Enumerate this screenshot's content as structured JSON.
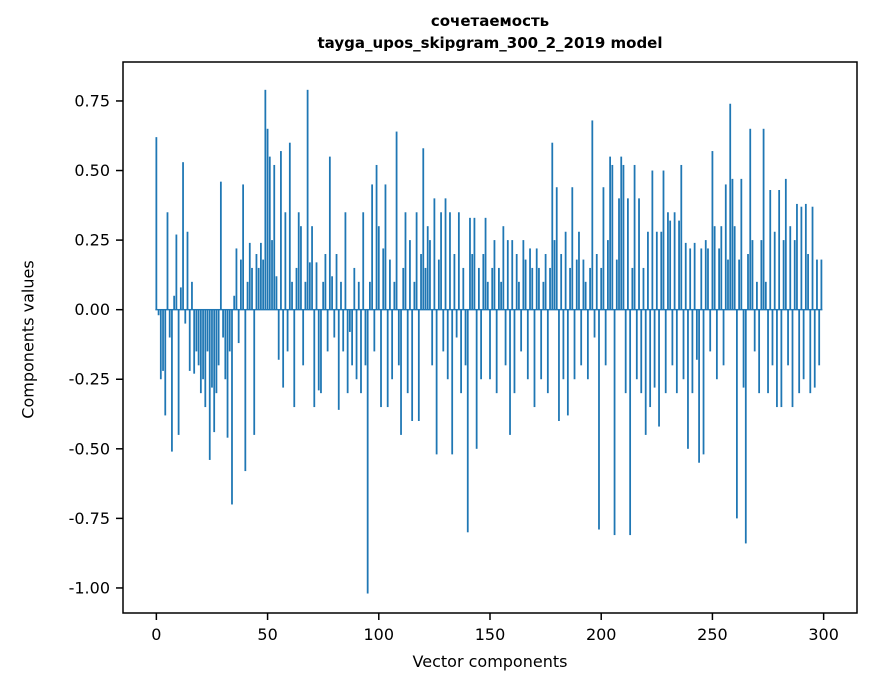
{
  "chart_data": {
    "type": "bar",
    "title": "сочетаемость",
    "subtitle": "tayga_upos_skipgram_300_2_2019 model",
    "xlabel": "Vector components",
    "ylabel": "Components values",
    "bar_color": "#1f77b4",
    "xlim": [
      -15,
      315
    ],
    "ylim": [
      -1.09,
      0.89
    ],
    "xticks": [
      0,
      50,
      100,
      150,
      200,
      250,
      300
    ],
    "yticks": [
      -1.0,
      -0.75,
      -0.5,
      -0.25,
      0.0,
      0.25,
      0.5,
      0.75
    ],
    "ytick_labels": [
      "-1.00",
      "-0.75",
      "-0.50",
      "-0.25",
      "0.00",
      "0.25",
      "0.50",
      "0.75"
    ],
    "grid": false,
    "legend": "none",
    "x_start": 0,
    "values": [
      0.62,
      -0.02,
      -0.25,
      -0.22,
      -0.38,
      0.35,
      -0.1,
      -0.51,
      0.05,
      0.27,
      -0.45,
      0.08,
      0.53,
      -0.05,
      0.28,
      -0.22,
      0.1,
      -0.23,
      -0.15,
      -0.2,
      -0.3,
      -0.25,
      -0.35,
      -0.15,
      -0.54,
      -0.28,
      -0.44,
      -0.3,
      -0.2,
      0.46,
      -0.1,
      -0.25,
      -0.46,
      -0.15,
      -0.7,
      0.05,
      0.22,
      -0.12,
      0.18,
      0.45,
      -0.58,
      0.1,
      0.24,
      0.15,
      -0.45,
      0.2,
      0.15,
      0.24,
      0.18,
      0.79,
      0.65,
      0.55,
      0.25,
      0.52,
      0.12,
      -0.18,
      0.57,
      -0.28,
      0.35,
      -0.15,
      0.6,
      0.1,
      -0.35,
      0.15,
      0.35,
      0.3,
      -0.2,
      0.1,
      0.79,
      0.17,
      0.3,
      -0.35,
      0.17,
      -0.29,
      -0.3,
      0.1,
      0.2,
      -0.15,
      0.55,
      0.12,
      -0.1,
      0.2,
      -0.36,
      0.1,
      -0.15,
      0.35,
      -0.3,
      -0.08,
      -0.2,
      0.15,
      -0.25,
      0.1,
      -0.3,
      0.35,
      -0.2,
      -1.02,
      0.1,
      0.45,
      -0.15,
      0.52,
      0.3,
      -0.35,
      0.22,
      0.45,
      -0.35,
      0.18,
      -0.25,
      0.1,
      0.64,
      -0.2,
      -0.45,
      0.15,
      0.35,
      -0.3,
      0.25,
      -0.4,
      0.1,
      0.35,
      -0.4,
      0.2,
      0.58,
      0.15,
      0.3,
      0.25,
      -0.2,
      0.4,
      -0.52,
      0.18,
      0.35,
      -0.15,
      0.4,
      -0.25,
      0.35,
      -0.52,
      0.2,
      -0.1,
      0.35,
      -0.3,
      0.15,
      -0.2,
      -0.8,
      0.33,
      0.2,
      0.33,
      -0.5,
      0.15,
      -0.25,
      0.2,
      0.33,
      0.1,
      -0.25,
      0.15,
      0.25,
      -0.3,
      0.15,
      0.1,
      0.3,
      -0.2,
      0.25,
      -0.45,
      0.25,
      -0.3,
      0.2,
      0.1,
      -0.15,
      0.25,
      0.18,
      -0.25,
      0.22,
      0.15,
      -0.35,
      0.22,
      0.15,
      -0.25,
      0.1,
      0.2,
      -0.3,
      0.15,
      0.6,
      0.25,
      0.44,
      -0.4,
      0.2,
      -0.25,
      0.28,
      -0.38,
      0.15,
      0.44,
      -0.25,
      0.18,
      0.28,
      -0.2,
      0.18,
      0.1,
      -0.25,
      0.15,
      0.68,
      -0.1,
      0.2,
      -0.79,
      0.15,
      0.44,
      -0.2,
      0.25,
      0.55,
      0.52,
      -0.81,
      0.18,
      0.4,
      0.55,
      0.52,
      -0.3,
      0.4,
      -0.81,
      0.15,
      0.52,
      -0.25,
      0.4,
      -0.3,
      0.15,
      -0.45,
      0.28,
      -0.35,
      0.5,
      -0.28,
      0.28,
      -0.42,
      0.28,
      0.5,
      -0.3,
      0.35,
      0.32,
      -0.2,
      0.35,
      -0.3,
      0.32,
      0.52,
      -0.25,
      0.24,
      -0.5,
      0.22,
      -0.3,
      0.24,
      -0.18,
      -0.55,
      0.22,
      -0.52,
      0.25,
      0.22,
      -0.15,
      0.57,
      0.3,
      -0.25,
      0.22,
      0.3,
      -0.2,
      0.45,
      0.18,
      0.74,
      0.47,
      0.3,
      -0.75,
      0.18,
      0.47,
      -0.28,
      -0.84,
      0.2,
      0.65,
      0.25,
      -0.15,
      0.1,
      -0.3,
      0.25,
      0.65,
      0.1,
      -0.3,
      0.43,
      -0.2,
      0.28,
      -0.35,
      0.43,
      -0.35,
      0.25,
      0.47,
      -0.2,
      0.3,
      -0.35,
      0.25,
      0.38,
      -0.3,
      0.37,
      -0.25,
      0.38,
      0.2,
      -0.3,
      0.37,
      -0.28,
      0.18,
      -0.2,
      0.18
    ]
  }
}
